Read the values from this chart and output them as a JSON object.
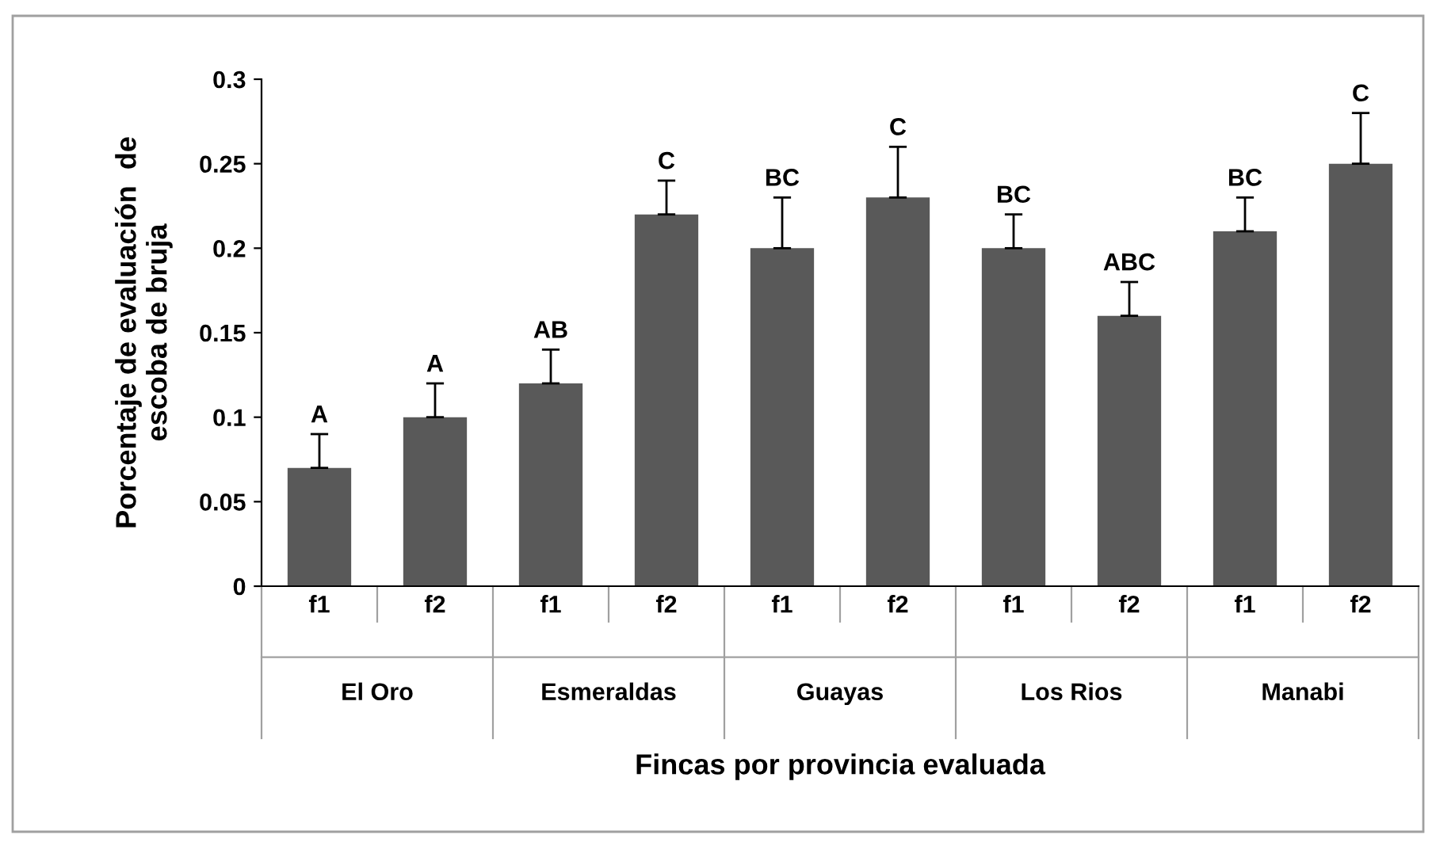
{
  "chart_data": {
    "type": "bar",
    "xlabel": "Fincas por provincia evaluada",
    "ylabel": "Porcentaje de evaluación  de\nescoba de bruja",
    "categories": [
      "f1",
      "f2",
      "f1",
      "f2",
      "f1",
      "f2",
      "f1",
      "f2",
      "f1",
      "f2"
    ],
    "annotations": [
      "El Oro",
      "Esmeraldas",
      "Guayas",
      "Los Rios",
      "Manabi"
    ],
    "values": [
      0.07,
      0.1,
      0.12,
      0.22,
      0.2,
      0.23,
      0.2,
      0.16,
      0.21,
      0.25
    ],
    "errors": [
      [
        0.07,
        0.09
      ],
      [
        0.1,
        0.12
      ],
      [
        0.12,
        0.14
      ],
      [
        0.22,
        0.24
      ],
      [
        0.2,
        0.23
      ],
      [
        0.23,
        0.26
      ],
      [
        0.2,
        0.22
      ],
      [
        0.16,
        0.18
      ],
      [
        0.21,
        0.23
      ],
      [
        0.25,
        0.28
      ]
    ],
    "value_labels": [
      "A",
      "A",
      "AB",
      "C",
      "BC",
      "C",
      "BC",
      "ABC",
      "BC",
      "C"
    ],
    "color": "#595959",
    "ylim": [
      0,
      0.3
    ],
    "yticks": [
      0,
      0.05,
      0.1,
      0.15,
      0.2,
      0.25,
      0.3
    ],
    "grid": false
  }
}
